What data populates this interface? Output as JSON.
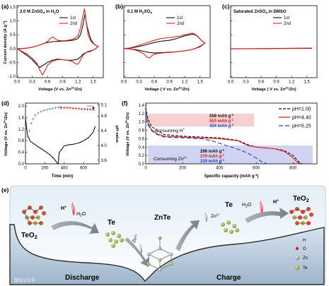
{
  "panels": {
    "a": {
      "letter": "(a)",
      "condition": "2.0 M ZnSO",
      "condition_sub": "4",
      "condition_tail": " in H",
      "condition_sub2": "2",
      "condition_end": "O",
      "ylabel": "Current density (A g",
      "ylabel_sup": "-1",
      "ylabel_end": ")",
      "xlabel": "Voltage (V vs. Zn",
      "xlabel_sup": "2+",
      "xlabel_end": "/Zn)"
    },
    "b": {
      "letter": "(b)",
      "condition": "0.1 M H",
      "condition_sub": "2",
      "condition_tail": "SO",
      "condition_sub2": "4",
      "xlabel": "Voltage ( V vs. Zn",
      "xlabel_sup": "2+",
      "xlabel_end": "/Zn)"
    },
    "c": {
      "letter": "(c)",
      "condition": "Saturated ZnSO",
      "condition_sub": "4",
      "condition_tail": " in DMSO",
      "xlabel": "Voltage ( V vs. Zn",
      "xlabel_sup": "2+",
      "xlabel_end": "/Zn)"
    },
    "d": {
      "letter": "(d)",
      "ylabel": "Voltage (V vs. Zn",
      "ylabel_sup": "2+",
      "ylabel_end": "/Zn)",
      "y2label": "pH value",
      "xlabel": "Time (min)"
    },
    "f": {
      "letter": "(f)",
      "ylabel": "Voltage (V vs. Zn",
      "ylabel_sup": "2+",
      "ylabel_end": "/Zn)",
      "xlabel": "Specific capacity (mAh g",
      "xlabel_sup": "-1",
      "xlabel_end": ")",
      "region_h": "Consuming H",
      "region_h_sup": "+",
      "region_zn": "Consuming Zn",
      "region_zn_sup": "2+",
      "cap_h": [
        "559 mAh g",
        "553 mAh g",
        "434 mAh g"
      ],
      "cap_zn": [
        "296 mAh g",
        "270 mAh g",
        "219 mAh g"
      ],
      "cap_sup": "-1"
    },
    "e": {
      "letter": "(e)",
      "discharge": "Discharge",
      "charge": "Charge",
      "teo2_left": "TeO",
      "teo2_right": "TeO",
      "sub2": "2",
      "te_left": "Te",
      "znte": "ZnTe",
      "te_right": "Te",
      "h_plus": "H",
      "h_plus_sup": "+",
      "h2o": "H",
      "h2o_sub": "2",
      "h2o_end": "O",
      "zn2": "Zn",
      "zn2_sup": "2+",
      "legend": [
        "H",
        "O",
        "Zn",
        "Te"
      ],
      "watermark": "微信公众号"
    }
  },
  "chart_data": [
    {
      "panel": "a",
      "type": "line",
      "xlim": [
        0.0,
        1.7
      ],
      "ylim": [
        -1.05,
        1.55
      ],
      "xticks": [
        "0.0",
        "0.3",
        "0.6",
        "0.9",
        "1.2",
        "1.5"
      ],
      "yticks": [
        "-1.0",
        "-0.5",
        "0.0",
        "0.5",
        "1.0",
        "1.5"
      ],
      "series": [
        {
          "name": "1st",
          "color": "#111111",
          "x": [
            0.0,
            0.1,
            0.2,
            0.3,
            0.4,
            0.5,
            0.55,
            0.6,
            0.7,
            0.8,
            0.9,
            1.0,
            1.1,
            1.2,
            1.25,
            1.3,
            1.34,
            1.38,
            1.45,
            1.5,
            1.55,
            1.6,
            1.55,
            1.5,
            1.45,
            1.4,
            1.35,
            1.3,
            1.25,
            1.2,
            1.1,
            1.0,
            0.9,
            0.8,
            0.7,
            0.6,
            0.5,
            0.45,
            0.4,
            0.3,
            0.2,
            0.1,
            0.05,
            0.0
          ],
          "y": [
            0.0,
            0.0,
            0.02,
            0.05,
            0.1,
            0.16,
            0.2,
            0.22,
            0.25,
            0.26,
            0.27,
            0.28,
            0.3,
            0.36,
            0.5,
            0.85,
            1.25,
            0.8,
            0.35,
            0.2,
            0.12,
            0.08,
            0.0,
            -0.05,
            -0.1,
            -0.12,
            -0.15,
            -0.2,
            -0.3,
            -0.38,
            -0.42,
            -0.42,
            -0.4,
            -0.38,
            -0.42,
            -0.5,
            -0.62,
            -0.68,
            -0.6,
            -0.4,
            -0.25,
            -0.12,
            -0.06,
            0.0
          ]
        },
        {
          "name": "2nd",
          "color": "#e02020",
          "x": [
            0.0,
            0.1,
            0.2,
            0.3,
            0.4,
            0.5,
            0.6,
            0.65,
            0.7,
            0.75,
            0.8,
            0.9,
            1.0,
            1.1,
            1.2,
            1.25,
            1.3,
            1.33,
            1.36,
            1.4,
            1.45,
            1.5,
            1.55,
            1.6,
            1.55,
            1.5,
            1.45,
            1.4,
            1.35,
            1.3,
            1.25,
            1.2,
            1.15,
            1.1,
            1.0,
            0.9,
            0.8,
            0.7,
            0.6,
            0.55,
            0.5,
            0.45,
            0.4,
            0.3,
            0.2,
            0.1,
            0.0
          ],
          "y": [
            0.0,
            0.0,
            0.02,
            0.05,
            0.1,
            0.16,
            0.25,
            0.36,
            0.42,
            0.36,
            0.3,
            0.28,
            0.3,
            0.34,
            0.45,
            0.75,
            1.2,
            1.44,
            1.0,
            0.5,
            0.28,
            0.18,
            0.12,
            0.08,
            0.0,
            -0.05,
            -0.08,
            -0.1,
            -0.15,
            -0.25,
            -0.42,
            -0.56,
            -0.55,
            -0.48,
            -0.42,
            -0.4,
            -0.4,
            -0.45,
            -0.6,
            -0.8,
            -0.95,
            -0.78,
            -0.55,
            -0.35,
            -0.2,
            -0.1,
            0.0
          ]
        }
      ]
    },
    {
      "panel": "b",
      "type": "line",
      "xlim": [
        0.0,
        1.7
      ],
      "ylim": [
        -1.05,
        1.55
      ],
      "xticks": [
        "0.0",
        "0.3",
        "0.6",
        "0.9",
        "1.2",
        "1.5"
      ],
      "series": [
        {
          "name": "1st",
          "color": "#111111",
          "x": [
            0.0,
            0.1,
            0.2,
            0.3,
            0.4,
            0.5,
            0.6,
            0.7,
            0.8,
            0.9,
            1.0,
            1.1,
            1.2,
            1.3,
            1.35,
            1.4,
            1.45,
            1.5,
            1.55,
            1.6,
            1.55,
            1.5,
            1.4,
            1.3,
            1.2,
            1.1,
            1.0,
            0.9,
            0.8,
            0.7,
            0.6,
            0.5,
            0.4,
            0.3,
            0.2,
            0.1,
            0.0
          ],
          "y": [
            0.0,
            0.01,
            0.04,
            0.08,
            0.12,
            0.17,
            0.22,
            0.26,
            0.28,
            0.3,
            0.34,
            0.4,
            0.46,
            0.5,
            0.52,
            0.5,
            0.44,
            0.35,
            0.26,
            0.2,
            0.15,
            0.08,
            0.0,
            -0.05,
            -0.08,
            -0.1,
            -0.12,
            -0.13,
            -0.14,
            -0.15,
            -0.16,
            -0.14,
            -0.1,
            -0.06,
            -0.03,
            -0.01,
            0.0
          ]
        },
        {
          "name": "2nd",
          "color": "#e02020",
          "x": [
            0.0,
            0.1,
            0.2,
            0.3,
            0.4,
            0.5,
            0.6,
            0.7,
            0.8,
            0.9,
            1.0,
            1.1,
            1.2,
            1.3,
            1.35,
            1.4,
            1.45,
            1.5,
            1.55,
            1.6,
            1.55,
            1.5,
            1.4,
            1.3,
            1.2,
            1.1,
            1.0,
            0.9,
            0.8,
            0.7,
            0.6,
            0.55,
            0.5,
            0.45,
            0.4,
            0.3,
            0.2,
            0.1,
            0.0
          ],
          "y": [
            0.0,
            0.02,
            0.06,
            0.12,
            0.18,
            0.24,
            0.3,
            0.35,
            0.38,
            0.4,
            0.42,
            0.45,
            0.5,
            0.54,
            0.56,
            0.52,
            0.45,
            0.35,
            0.26,
            0.2,
            0.14,
            0.06,
            0.0,
            -0.05,
            -0.08,
            -0.1,
            -0.12,
            -0.14,
            -0.15,
            -0.17,
            -0.2,
            -0.26,
            -0.34,
            -0.3,
            -0.2,
            -0.1,
            -0.04,
            -0.01,
            0.0
          ]
        }
      ]
    },
    {
      "panel": "c",
      "type": "line",
      "xlim": [
        0.0,
        1.7
      ],
      "ylim": [
        -1.05,
        1.55
      ],
      "xticks": [
        "0.0",
        "0.3",
        "0.6",
        "0.9",
        "1.2",
        "1.5"
      ],
      "series": [
        {
          "name": "1st",
          "color": "#111111",
          "x": [
            0.0,
            0.4,
            0.8,
            1.2,
            1.6
          ],
          "y": [
            -0.01,
            -0.005,
            0.0,
            0.005,
            0.01
          ]
        },
        {
          "name": "2nd",
          "color": "#e02020",
          "x": [
            0.0,
            0.4,
            0.8,
            1.2,
            1.6
          ],
          "y": [
            -0.005,
            0.0,
            0.005,
            0.012,
            0.02
          ]
        }
      ]
    },
    {
      "panel": "d",
      "type": "line",
      "xlim": [
        0,
        760
      ],
      "ylim": [
        0.0,
        2.1
      ],
      "y2lim": [
        3.5,
        5.15
      ],
      "xticks": [
        "0",
        "200",
        "400",
        "600"
      ],
      "yticks": [
        "0.0",
        "0.4",
        "0.8",
        "1.2",
        "1.6",
        "2.0"
      ],
      "y2ticks": [
        "3.6",
        "4.0",
        "4.4",
        "4.8",
        "5.1"
      ],
      "series": [
        {
          "name": "voltage",
          "color": "#111111",
          "x": [
            0,
            20,
            50,
            100,
            150,
            200,
            250,
            300,
            330,
            340,
            345,
            350,
            370,
            400,
            450,
            500,
            550,
            600,
            650,
            700,
            720
          ],
          "y": [
            1.6,
            1.0,
            0.78,
            0.66,
            0.55,
            0.44,
            0.32,
            0.16,
            0.02,
            0.0,
            0.3,
            0.4,
            0.48,
            0.62,
            0.66,
            0.68,
            0.72,
            0.8,
            0.9,
            1.1,
            1.3
          ]
        },
        {
          "name": "ph-rising",
          "color": "#888888",
          "axis": "y2",
          "x": [
            20,
            40,
            60,
            80,
            100,
            130,
            160,
            190,
            220,
            250,
            280,
            310,
            340,
            360
          ],
          "y": [
            4.25,
            4.4,
            4.6,
            4.72,
            4.82,
            4.88,
            4.92,
            4.95,
            4.97,
            4.99,
            5.0,
            5.02,
            5.03,
            5.04
          ]
        },
        {
          "name": "ph-falling",
          "color": "#e02020",
          "axis": "y2",
          "x": [
            370,
            400,
            430,
            460,
            490,
            520,
            550,
            580,
            610,
            640,
            670,
            700
          ],
          "y": [
            5.02,
            5.03,
            5.02,
            5.02,
            5.01,
            5.0,
            5.0,
            4.99,
            4.99,
            4.98,
            4.98,
            4.97
          ]
        }
      ]
    },
    {
      "panel": "f",
      "type": "line",
      "xlim": [
        0,
        930
      ],
      "ylim": [
        0.0,
        1.45
      ],
      "xticks": [
        "0",
        "200",
        "400",
        "600",
        "800"
      ],
      "yticks": [
        "0.0",
        "0.2",
        "0.4",
        "0.6",
        "0.8",
        "1.0",
        "1.2",
        "1.4"
      ],
      "series": [
        {
          "name": "pH=1.00",
          "color": "#111111",
          "dash": "4,2",
          "x": [
            0,
            10,
            30,
            60,
            100,
            200,
            300,
            400,
            500,
            559,
            600,
            650,
            700,
            750,
            800,
            830,
            850
          ],
          "y": [
            1.35,
            1.1,
            0.9,
            0.8,
            0.7,
            0.66,
            0.64,
            0.62,
            0.56,
            0.45,
            0.4,
            0.38,
            0.36,
            0.32,
            0.2,
            0.05,
            0.0
          ]
        },
        {
          "name": "pH=4.40",
          "color": "#e02020",
          "dash": "",
          "x": [
            0,
            10,
            30,
            60,
            100,
            200,
            300,
            400,
            500,
            553,
            600,
            650,
            700,
            750,
            790,
            820,
            840
          ],
          "y": [
            1.3,
            1.0,
            0.82,
            0.72,
            0.66,
            0.64,
            0.62,
            0.6,
            0.55,
            0.44,
            0.4,
            0.38,
            0.36,
            0.3,
            0.18,
            0.05,
            0.0
          ]
        },
        {
          "name": "pH=5.25",
          "color": "#2040d0",
          "dash": "6,3",
          "x": [
            0,
            10,
            30,
            60,
            100,
            200,
            300,
            360,
            434,
            480,
            520,
            560,
            600,
            630,
            660
          ],
          "y": [
            1.25,
            0.95,
            0.8,
            0.7,
            0.64,
            0.62,
            0.6,
            0.55,
            0.44,
            0.38,
            0.32,
            0.24,
            0.14,
            0.05,
            0.0
          ]
        }
      ]
    }
  ]
}
